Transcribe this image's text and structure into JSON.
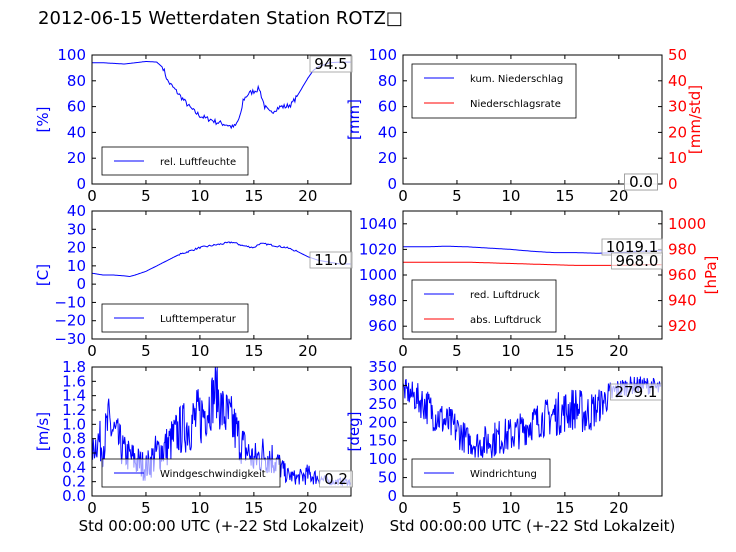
{
  "page": {
    "title": "2012-06-15 Wetterdaten Station ROTZ□"
  },
  "colors": {
    "left_axis": "#0000ff",
    "right_axis": "#ff0000",
    "line_blue": "#0000ff",
    "line_red": "#ff0000"
  },
  "chart_data": [
    {
      "id": "humidity",
      "type": "line",
      "title": "",
      "xlabel": "",
      "ylabel": "[%]",
      "xlim": [
        0,
        24
      ],
      "ylim": [
        0,
        100
      ],
      "xticks": [
        "0",
        "5",
        "10",
        "15",
        "20"
      ],
      "yticks": [
        "0",
        "20",
        "40",
        "60",
        "80",
        "100"
      ],
      "legend": "lower-left",
      "grid": false,
      "series": [
        {
          "name": "rel. Luftfeuchte",
          "color": "#0000ff",
          "x": [
            0,
            1,
            2,
            3,
            4,
            5,
            6,
            6.6,
            7,
            7.5,
            8,
            8.5,
            9,
            9.5,
            10,
            10.5,
            11,
            11.5,
            12,
            12.5,
            13,
            13.3,
            13.8,
            14,
            14.5,
            15,
            15.5,
            16,
            16.5,
            17,
            17.5,
            18,
            18.5,
            19,
            19.5,
            20,
            20.5,
            21,
            22,
            23,
            24
          ],
          "y": [
            94,
            94,
            93.5,
            93,
            94,
            95,
            94.5,
            90,
            80,
            75,
            70,
            65,
            60,
            56,
            53,
            51,
            50,
            48,
            47,
            46,
            44,
            45,
            54,
            65,
            70,
            72,
            74,
            60,
            55,
            58,
            60,
            60,
            62,
            68,
            75,
            82,
            88,
            91,
            94,
            94.5,
            94.5
          ]
        }
      ],
      "annotations": [
        "94.5"
      ]
    },
    {
      "id": "precip",
      "type": "line",
      "title": "",
      "xlabel": "",
      "ylabel": "[mm]",
      "ylabel_right": "[mm/std]",
      "xlim": [
        0,
        24
      ],
      "ylim": [
        0,
        100
      ],
      "ylim_right": [
        0,
        50
      ],
      "xticks": [
        "0",
        "5",
        "10",
        "15",
        "20"
      ],
      "yticks": [
        "0",
        "20",
        "40",
        "60",
        "80",
        "100"
      ],
      "yticks_right": [
        "0",
        "10",
        "20",
        "30",
        "40",
        "50"
      ],
      "legend": "upper-left",
      "grid": false,
      "series": [
        {
          "name": "kum. Niederschlag",
          "color": "#0000ff",
          "x": [
            0,
            24
          ],
          "y": [
            0,
            0
          ]
        },
        {
          "name": "Niederschlagsrate",
          "color": "#ff0000",
          "x": [
            0,
            24
          ],
          "y": [
            0,
            0
          ],
          "axis": "right"
        }
      ],
      "annotations": [
        "0.0",
        "0.0"
      ]
    },
    {
      "id": "temperature",
      "type": "line",
      "title": "",
      "xlabel": "",
      "ylabel": "[C]",
      "xlim": [
        0,
        24
      ],
      "ylim": [
        -30,
        40
      ],
      "xticks": [
        "0",
        "5",
        "10",
        "15",
        "20"
      ],
      "yticks": [
        "−30",
        "−20",
        "−10",
        "0",
        "10",
        "20",
        "30",
        "40"
      ],
      "legend": "lower-left",
      "grid": false,
      "series": [
        {
          "name": "Lufttemperatur",
          "color": "#0000ff",
          "x": [
            0,
            1,
            2,
            3,
            3.5,
            4,
            5,
            6,
            7,
            8,
            9,
            10,
            11,
            12,
            13,
            13.5,
            14,
            15,
            15.5,
            16,
            17,
            18,
            19,
            20,
            21,
            22,
            23,
            24
          ],
          "y": [
            6,
            5,
            5,
            4.5,
            4.2,
            5,
            7,
            10,
            13,
            16,
            18,
            20,
            21,
            22,
            23,
            22,
            21,
            20,
            22,
            22,
            21,
            20,
            18,
            15,
            13,
            12,
            11,
            11
          ]
        }
      ],
      "annotations": [
        "11.0"
      ]
    },
    {
      "id": "pressure",
      "type": "line",
      "title": "",
      "xlabel": "",
      "ylabel": "",
      "ylabel_right": "[hPa]",
      "xlim": [
        0,
        24
      ],
      "ylim": [
        950,
        1050
      ],
      "ylim_right": [
        910,
        1010
      ],
      "xticks": [
        "0",
        "5",
        "10",
        "15",
        "20"
      ],
      "yticks": [
        "960",
        "980",
        "1000",
        "1020",
        "1040"
      ],
      "yticks_right": [
        "920",
        "940",
        "960",
        "980",
        "1000"
      ],
      "legend": "lower-left",
      "grid": false,
      "series": [
        {
          "name": "red. Luftdruck",
          "color": "#0000ff",
          "x": [
            0,
            2,
            4,
            6,
            8,
            10,
            12,
            14,
            16,
            18,
            20,
            22,
            24
          ],
          "y": [
            1022,
            1022,
            1022.5,
            1022,
            1021,
            1020,
            1018.5,
            1017.5,
            1017.5,
            1017,
            1017.5,
            1018.5,
            1019
          ]
        },
        {
          "name": "abs. Luftdruck",
          "color": "#ff0000",
          "axis": "right",
          "x": [
            0,
            2,
            4,
            6,
            8,
            10,
            12,
            14,
            16,
            18,
            20,
            22,
            24
          ],
          "y": [
            970,
            970,
            970,
            970,
            969.5,
            969,
            968.5,
            968,
            967.5,
            967.5,
            967.5,
            968,
            968
          ]
        }
      ],
      "annotations": [
        "1019.1",
        "968.0"
      ]
    },
    {
      "id": "wind_speed",
      "type": "line",
      "title": "",
      "xlabel": "Std 00:00:00 UTC (+-22 Std Lokalzeit)",
      "ylabel": "[m/s]",
      "xlim": [
        0,
        24
      ],
      "ylim": [
        0,
        1.8
      ],
      "xticks": [
        "0",
        "5",
        "10",
        "15",
        "20"
      ],
      "yticks": [
        "0.0",
        "0.2",
        "0.4",
        "0.6",
        "0.8",
        "1.0",
        "1.2",
        "1.4",
        "1.6",
        "1.8"
      ],
      "legend": "lower-left",
      "grid": false,
      "series": [
        {
          "name": "Windgeschwindigkeit",
          "color": "#0000ff",
          "x": [
            0,
            0.5,
            1,
            1.5,
            2,
            3,
            4,
            5,
            6,
            7,
            8,
            9,
            10,
            11,
            11.5,
            12,
            13,
            14,
            14.5,
            15,
            16,
            17,
            18,
            19,
            20,
            21,
            22,
            23,
            24
          ],
          "y": [
            0.6,
            0.8,
            0.7,
            1.0,
            0.9,
            0.6,
            0.5,
            0.4,
            0.6,
            0.7,
            0.9,
            1.0,
            1.1,
            1.3,
            1.5,
            1.2,
            1.0,
            0.7,
            0.6,
            0.5,
            0.6,
            0.5,
            0.3,
            0.25,
            0.3,
            0.25,
            0.2,
            0.2,
            0.2
          ],
          "spread": [
            0.15,
            0.3,
            0.3,
            0.4,
            0.35,
            0.25,
            0.25,
            0.2,
            0.3,
            0.3,
            0.35,
            0.4,
            0.45,
            0.4,
            0.4,
            0.4,
            0.4,
            0.3,
            0.25,
            0.25,
            0.3,
            0.25,
            0.12,
            0.1,
            0.15,
            0.1,
            0.05,
            0.05,
            0.05
          ]
        }
      ],
      "annotations": [
        "0.2"
      ]
    },
    {
      "id": "wind_dir",
      "type": "line",
      "title": "",
      "xlabel": "Std 00:00:00 UTC (+-22 Std Lokalzeit)",
      "ylabel": "[deg]",
      "xlim": [
        0,
        24
      ],
      "ylim": [
        0,
        350
      ],
      "xticks": [
        "0",
        "5",
        "10",
        "15",
        "20"
      ],
      "yticks": [
        "0",
        "50",
        "100",
        "150",
        "200",
        "250",
        "300",
        "350"
      ],
      "legend": "lower-left",
      "grid": false,
      "series": [
        {
          "name": "Windrichtung",
          "color": "#0000ff",
          "x": [
            0,
            1,
            2,
            3,
            4,
            5,
            6,
            7,
            8,
            9,
            10,
            11,
            12,
            13,
            14,
            15,
            16,
            17,
            18,
            19,
            20,
            21,
            22,
            23,
            24
          ],
          "y": [
            290,
            270,
            250,
            220,
            200,
            180,
            150,
            140,
            150,
            160,
            165,
            180,
            200,
            210,
            220,
            230,
            240,
            220,
            240,
            270,
            290,
            300,
            300,
            300,
            285
          ],
          "spread": [
            30,
            40,
            50,
            50,
            50,
            50,
            40,
            40,
            50,
            50,
            50,
            50,
            50,
            50,
            60,
            60,
            60,
            60,
            50,
            40,
            30,
            25,
            25,
            25,
            25
          ]
        }
      ],
      "annotations": [
        "279.1"
      ]
    }
  ]
}
